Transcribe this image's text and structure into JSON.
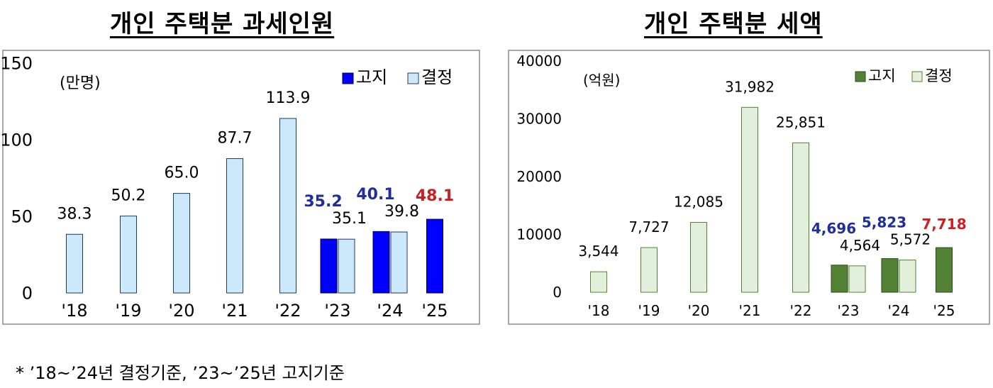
{
  "charts": {
    "left": {
      "title": "개인 주택분 과세인원"
    },
    "right": {
      "title": "개인 주택분 세액"
    }
  },
  "footnote": "*  ’18~’24년  결정기준,  ’23~’25년  고지기준",
  "chart_data": [
    {
      "type": "bar",
      "title": "개인 주택분 과세인원",
      "unit": "(만명)",
      "categories": [
        "'18",
        "'19",
        "'20",
        "'21",
        "'22",
        "'23",
        "'24",
        "'25"
      ],
      "ylim": [
        0,
        150
      ],
      "yticks": [
        "0",
        "50",
        "100",
        "150"
      ],
      "legend": "top-right",
      "series": [
        {
          "name": "고지",
          "color": "#0000ff",
          "stroke": "#000033",
          "values": [
            null,
            null,
            null,
            null,
            null,
            35.2,
            40.1,
            48.1
          ],
          "labels": [
            "",
            "",
            "",
            "",
            "",
            "35.2",
            "40.1",
            "48.1"
          ],
          "label_colors": [
            "",
            "",
            "",
            "",
            "",
            "#1f2d9e",
            "#1f2d9e",
            "#cc1f1f"
          ]
        },
        {
          "name": "결정",
          "color": "#cce8fb",
          "stroke": "#1f3a63",
          "values": [
            38.3,
            50.2,
            65.0,
            87.7,
            113.9,
            35.1,
            39.8,
            null
          ],
          "labels": [
            "38.3",
            "50.2",
            "65.0",
            "87.7",
            "113.9",
            "35.1",
            "39.8",
            ""
          ],
          "label_colors": [
            "#000000",
            "#000000",
            "#000000",
            "#000000",
            "#000000",
            "#000000",
            "#000000",
            ""
          ]
        }
      ]
    },
    {
      "type": "bar",
      "title": "개인 주택분 세액",
      "unit": "(억원)",
      "categories": [
        "'18",
        "'19",
        "'20",
        "'21",
        "'22",
        "'23",
        "'24",
        "'25"
      ],
      "ylim": [
        0,
        40000
      ],
      "yticks": [
        "0",
        "10000",
        "20000",
        "30000",
        "40000"
      ],
      "legend": "top-right",
      "series": [
        {
          "name": "고지",
          "color": "#548235",
          "stroke": "#2a4a1a",
          "values": [
            null,
            null,
            null,
            null,
            null,
            4696,
            5823,
            7718
          ],
          "labels": [
            "",
            "",
            "",
            "",
            "",
            "4,696",
            "5,823",
            "7,718"
          ],
          "label_colors": [
            "",
            "",
            "",
            "",
            "",
            "#1f2d9e",
            "#1f2d9e",
            "#cc1f1f"
          ]
        },
        {
          "name": "결정",
          "color": "#e2efda",
          "stroke": "#548235",
          "values": [
            3544,
            7727,
            12085,
            31982,
            25851,
            4564,
            5572,
            null
          ],
          "labels": [
            "3,544",
            "7,727",
            "12,085",
            "31,982",
            "25,851",
            "4,564",
            "5,572",
            ""
          ],
          "label_colors": [
            "#000000",
            "#000000",
            "#000000",
            "#000000",
            "#000000",
            "#000000",
            "#000000",
            ""
          ]
        }
      ]
    }
  ]
}
